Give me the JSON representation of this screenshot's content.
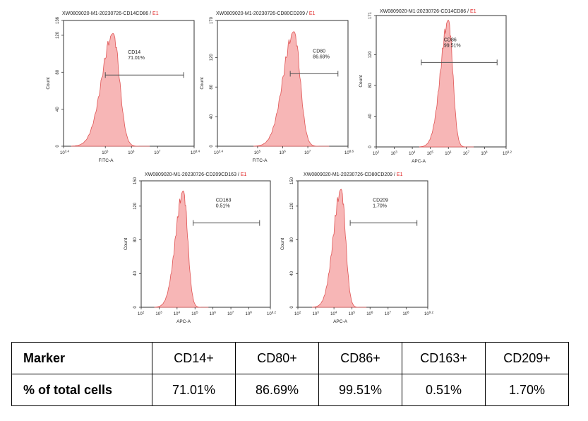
{
  "chart_data": [
    {
      "type": "area",
      "title": "XW0809020-M1-20230726-CD14CD86 / ",
      "title_flag": "E1",
      "xlabel": "FITC-A",
      "ylabel": "Count",
      "y_ticks": [
        "0",
        "40",
        "80",
        "120",
        "136"
      ],
      "ylim": [
        0,
        136
      ],
      "x_ticks": [
        "10^3.4",
        "10^5",
        "10^6",
        "10^7",
        "10^8.4"
      ],
      "xlim_log": [
        3.4,
        8.4
      ],
      "peak_log": 5.3,
      "peak_count": 122,
      "gate_label": "CD14",
      "gate_value": "71.01%",
      "gate_log": [
        5.0,
        8.0
      ],
      "gate_count": 77
    },
    {
      "type": "area",
      "title": "XW0809020-M1-20230726-CD80CD209 / ",
      "title_flag": "E1",
      "xlabel": "FITC-A",
      "ylabel": "Count",
      "y_ticks": [
        "0",
        "40",
        "80",
        "120",
        "170"
      ],
      "ylim": [
        0,
        170
      ],
      "x_ticks": [
        "10^3.4",
        "10^5",
        "10^6",
        "10^7",
        "10^8.6"
      ],
      "xlim_log": [
        3.4,
        8.6
      ],
      "peak_log": 6.45,
      "peak_count": 155,
      "gate_label": "CD80",
      "gate_value": "86.69%",
      "gate_log": [
        6.3,
        8.2
      ],
      "gate_count": 98
    },
    {
      "type": "area",
      "title": "XW0809020-M1-20230726-CD14CD86 / ",
      "title_flag": "E1",
      "xlabel": "APC-A",
      "ylabel": "Count",
      "y_ticks": [
        "0",
        "40",
        "80",
        "120",
        "171"
      ],
      "ylim": [
        0,
        171
      ],
      "x_ticks": [
        "10^2",
        "10^3",
        "10^4",
        "10^5",
        "10^6",
        "10^7",
        "10^8",
        "10^9.2"
      ],
      "xlim_log": [
        2,
        9.2
      ],
      "peak_log": 6.0,
      "peak_count": 165,
      "gate_label": "CD86",
      "gate_value": "99.51%",
      "gate_log": [
        4.5,
        8.7
      ],
      "gate_count": 110
    },
    {
      "type": "area",
      "title": "XW0809020-M1-20230726-CD209CD163 / ",
      "title_flag": "E1",
      "xlabel": "APC-A",
      "ylabel": "Count",
      "y_ticks": [
        "0",
        "40",
        "80",
        "120",
        "150"
      ],
      "ylim": [
        0,
        150
      ],
      "x_ticks": [
        "10^2",
        "10^3",
        "10^4",
        "10^5",
        "10^6",
        "10^7",
        "10^8",
        "10^9.2"
      ],
      "xlim_log": [
        2,
        9.2
      ],
      "peak_log": 4.35,
      "peak_count": 138,
      "gate_label": "CD163",
      "gate_value": "0.51%",
      "gate_log": [
        4.9,
        8.6
      ],
      "gate_count": 100
    },
    {
      "type": "area",
      "title": "XW0809020-M1-20230726-CD80CD209 / ",
      "title_flag": "E1",
      "xlabel": "APC-A",
      "ylabel": "Count",
      "y_ticks": [
        "0",
        "40",
        "80",
        "120",
        "150"
      ],
      "ylim": [
        0,
        150
      ],
      "x_ticks": [
        "10^2",
        "10^3",
        "10^4",
        "10^5",
        "10^6",
        "10^7",
        "10^8",
        "10^9.2"
      ],
      "xlim_log": [
        2,
        9.2
      ],
      "peak_log": 4.4,
      "peak_count": 140,
      "gate_label": "CD209",
      "gate_value": "1.70%",
      "gate_log": [
        4.9,
        8.6
      ],
      "gate_count": 100
    }
  ],
  "table": {
    "header": {
      "label": "Marker",
      "cells": [
        "CD14+",
        "CD80+",
        "CD86+",
        "CD163+",
        "CD209+"
      ]
    },
    "row": {
      "label": "% of total cells",
      "cells": [
        "71.01%",
        "86.69%",
        "99.51%",
        "0.51%",
        "1.70%"
      ]
    }
  },
  "colors": {
    "fill": "#f7b6b6",
    "stroke": "#e05555",
    "axis": "#333333",
    "flag": "#e02020"
  }
}
